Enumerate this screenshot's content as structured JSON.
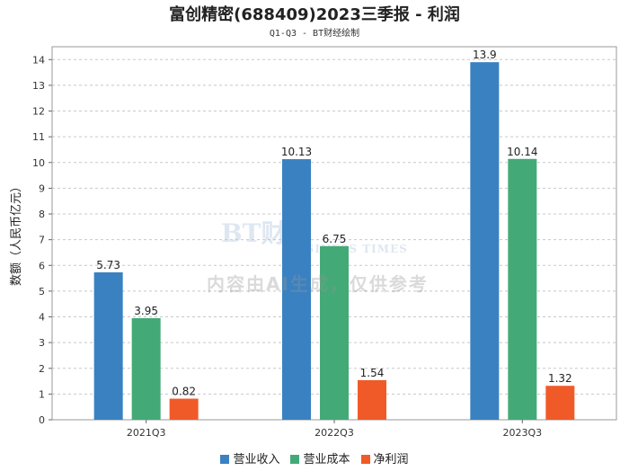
{
  "title": "富创精密(688409)2023三季报 - 利润",
  "subtitle": "Q1-Q3 - BT财经绘制",
  "watermark": {
    "logo": "BT财经",
    "logo_sub": "BUSINESS TIMES",
    "text": "内容由AI生成，仅供参考"
  },
  "chart_data": {
    "type": "bar",
    "categories": [
      "2021Q3",
      "2022Q3",
      "2023Q3"
    ],
    "series": [
      {
        "name": "营业收入",
        "color": "#3a81c1",
        "values": [
          5.73,
          10.13,
          13.9
        ],
        "labels": [
          "5.73",
          "10.13",
          "13.9"
        ]
      },
      {
        "name": "营业成本",
        "color": "#43aa77",
        "values": [
          3.95,
          6.75,
          10.14
        ],
        "labels": [
          "3.95",
          "6.75",
          "10.14"
        ]
      },
      {
        "name": "净利润",
        "color": "#f05a28",
        "values": [
          0.82,
          1.54,
          1.32
        ],
        "labels": [
          "0.82",
          "1.54",
          "1.32"
        ]
      }
    ],
    "ylabel": "数额（人民币亿元）",
    "xlabel": "",
    "ylim": [
      0,
      14.5
    ],
    "yticks": [
      "0",
      "1",
      "2",
      "3",
      "4",
      "5",
      "6",
      "7",
      "8",
      "9",
      "10",
      "11",
      "12",
      "13",
      "14"
    ],
    "grid": true,
    "legend": "bottom"
  }
}
